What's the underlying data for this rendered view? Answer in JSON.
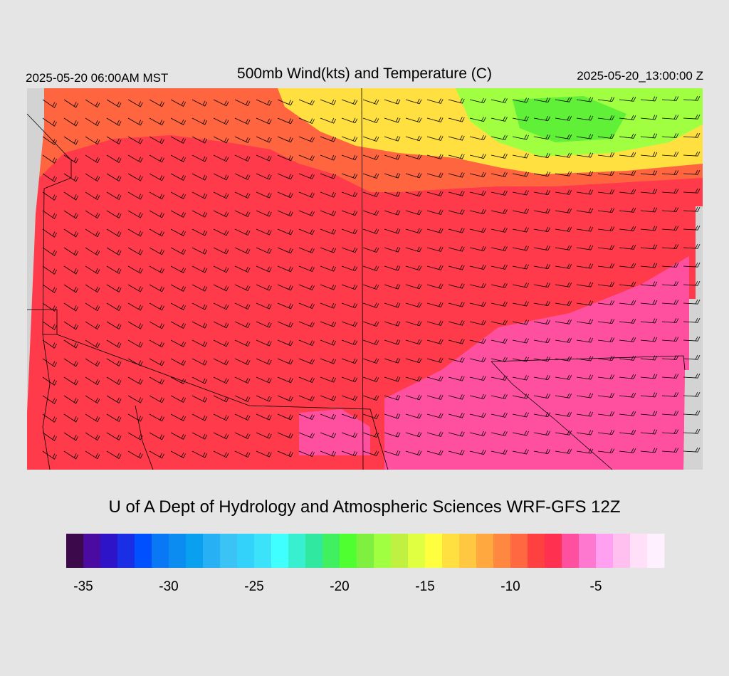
{
  "header": {
    "left_time": "2025-05-20 06:00AM MST",
    "title": "500mb Wind(kts) and Temperature (C)",
    "right_time": "2025-05-20_13:00:00 Z"
  },
  "credit": "U of A Dept of Hydrology and Atmospheric Sciences WRF-GFS 12Z",
  "colorbar": {
    "range": [
      -36,
      -1
    ],
    "ticks": [
      -35,
      -30,
      -25,
      -20,
      -15,
      -10,
      -5
    ],
    "colors": [
      "#3c0a4b",
      "#4b0aa0",
      "#2d14c8",
      "#1a2ee6",
      "#0050ff",
      "#0a78f5",
      "#0a8cf0",
      "#0aa0f0",
      "#28b0f5",
      "#3cc3f5",
      "#32d2fa",
      "#3ce1fa",
      "#40ffff",
      "#38f0d0",
      "#30e8a0",
      "#40f060",
      "#50ff30",
      "#80f040",
      "#a0ff40",
      "#c0f040",
      "#e0ff40",
      "#ffff40",
      "#ffe040",
      "#ffc840",
      "#ffa840",
      "#ff8840",
      "#ff6840",
      "#ff4040",
      "#ff3050",
      "#ff50a0",
      "#ff78d0",
      "#ffa0f0",
      "#ffc0f0",
      "#ffe0f8",
      "#fff0ff"
    ]
  }
}
